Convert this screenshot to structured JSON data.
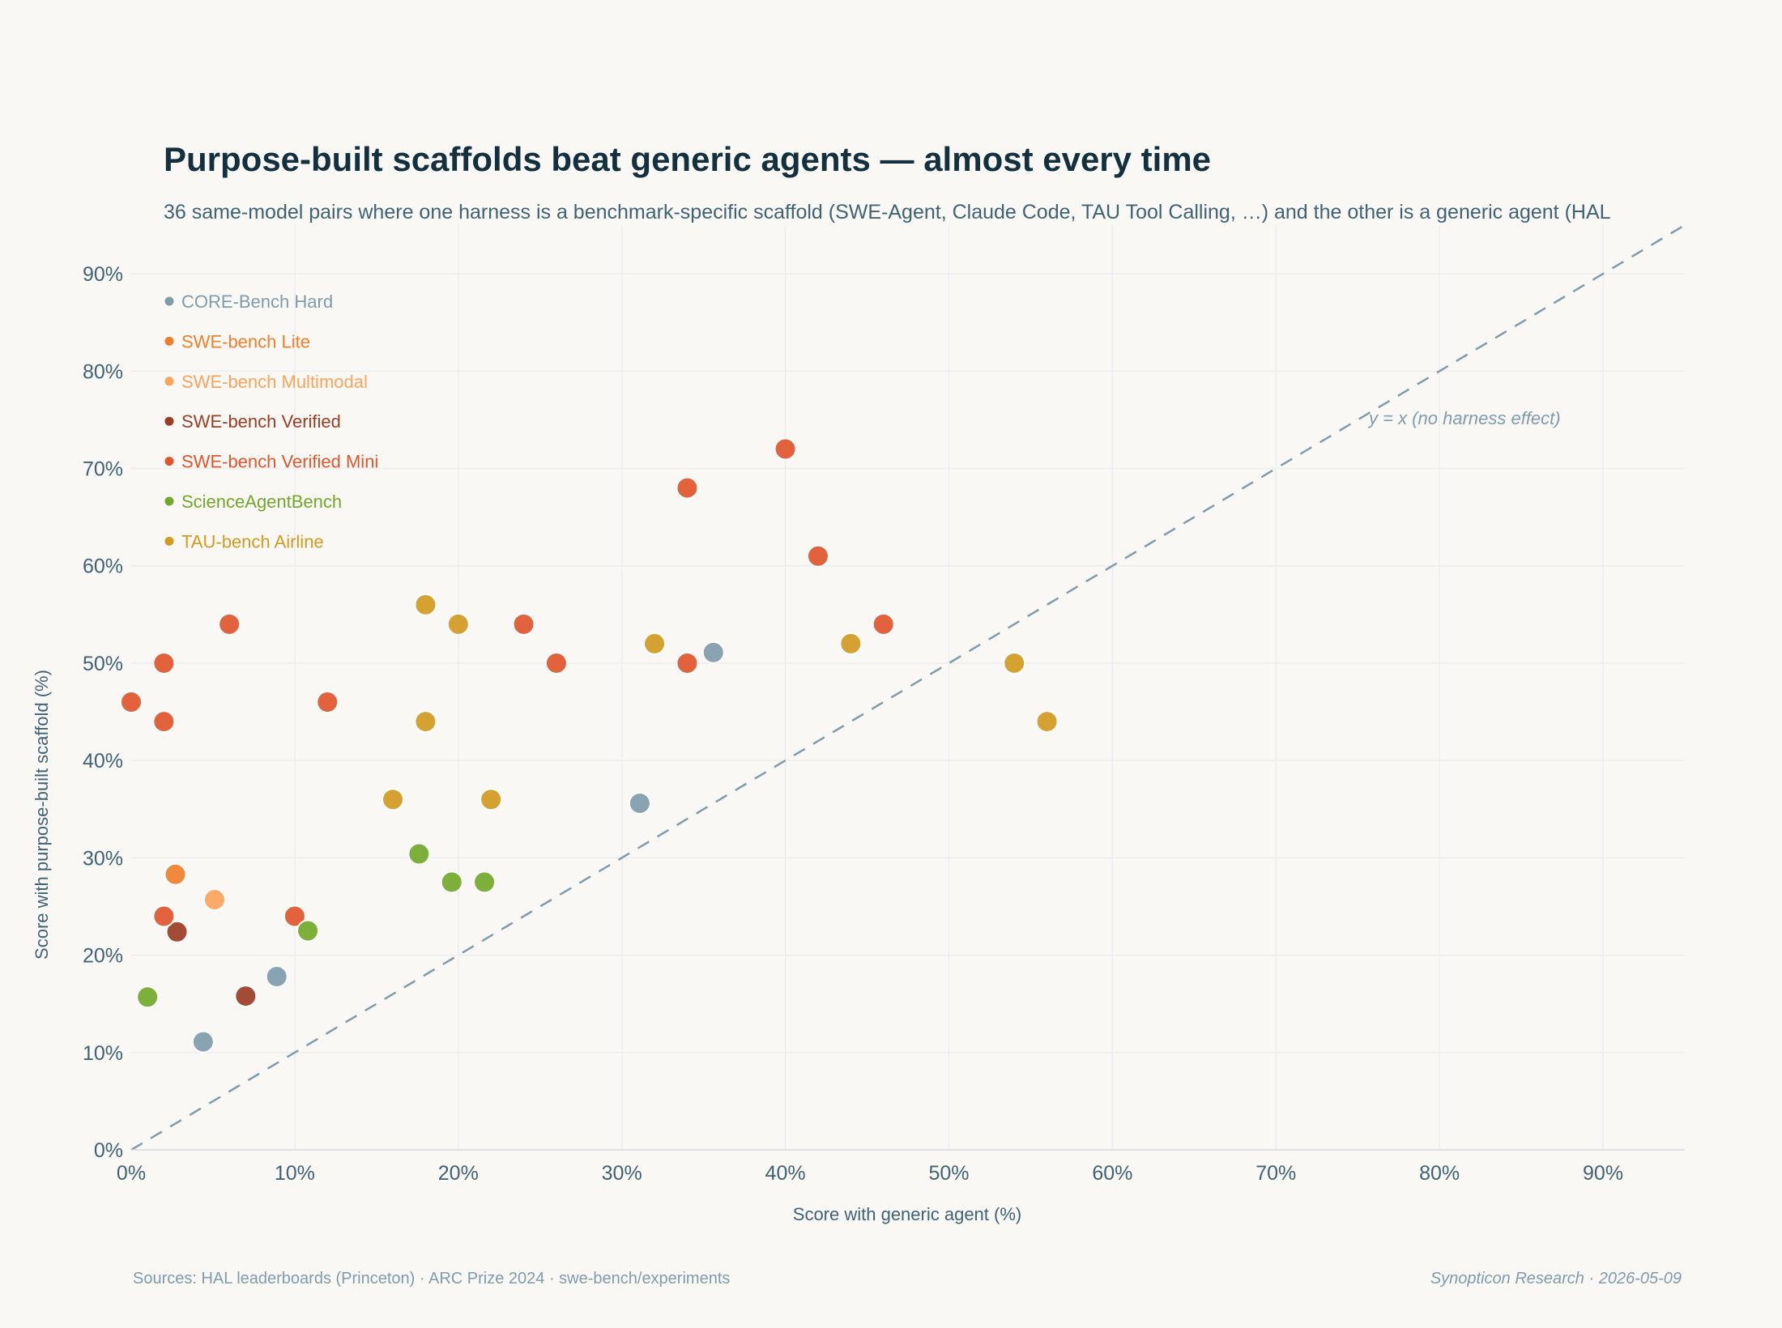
{
  "title": "Purpose-built scaffolds beat generic agents — almost every time",
  "subtitle": "36 same-model pairs where one harness is a benchmark-specific scaffold (SWE-Agent, Claude Code, TAU Tool Calling, …) and the other is a generic agent (HAL",
  "sources": "Sources: HAL leaderboards (Princeton) · ARC Prize 2024 · swe-bench/experiments",
  "credit": "Synopticon Research · 2026-05-09",
  "diagonal_label": "y = x (no harness effect)",
  "chart_data": {
    "type": "scatter",
    "title": "Purpose-built scaffolds beat generic agents — almost every time",
    "xlabel": "Score with generic agent (%)",
    "ylabel": "Score with purpose-built scaffold (%)",
    "xlim": [
      0,
      95
    ],
    "ylim": [
      0,
      95
    ],
    "xticks": [
      "0%",
      "10%",
      "20%",
      "30%",
      "40%",
      "50%",
      "60%",
      "70%",
      "80%",
      "90%"
    ],
    "yticks": [
      "0%",
      "10%",
      "20%",
      "30%",
      "40%",
      "50%",
      "60%",
      "70%",
      "80%",
      "90%"
    ],
    "tick_values": [
      0,
      10,
      20,
      30,
      40,
      50,
      60,
      70,
      80,
      90
    ],
    "grid": true,
    "legend_position": "top-left",
    "reference_line": "y = x",
    "series": [
      {
        "name": "CORE-Bench Hard",
        "color": "#7f9bac",
        "points": [
          [
            4.4,
            11.1
          ],
          [
            8.9,
            17.8
          ],
          [
            31.1,
            35.6
          ],
          [
            35.6,
            51.1
          ]
        ]
      },
      {
        "name": "SWE-bench Lite",
        "color": "#f07f2c",
        "points": [
          [
            2.7,
            28.3
          ]
        ]
      },
      {
        "name": "SWE-bench Multimodal",
        "color": "#fba35a",
        "points": [
          [
            5.1,
            25.7
          ]
        ]
      },
      {
        "name": "SWE-bench Verified",
        "color": "#9a3d25",
        "points": [
          [
            2.8,
            22.4
          ],
          [
            7.0,
            15.8
          ]
        ]
      },
      {
        "name": "SWE-bench Verified Mini",
        "color": "#e0552c",
        "points": [
          [
            0,
            46
          ],
          [
            2,
            50
          ],
          [
            2,
            44
          ],
          [
            2,
            24
          ],
          [
            6,
            54
          ],
          [
            10,
            24
          ],
          [
            12,
            46
          ],
          [
            24,
            54
          ],
          [
            26,
            50
          ],
          [
            34,
            68
          ],
          [
            34,
            50
          ],
          [
            40,
            72
          ],
          [
            42,
            61
          ],
          [
            46,
            54
          ]
        ]
      },
      {
        "name": "ScienceAgentBench",
        "color": "#72a82a",
        "points": [
          [
            1,
            15.7
          ],
          [
            10.8,
            22.5
          ],
          [
            17.6,
            30.4
          ],
          [
            19.6,
            27.5
          ],
          [
            21.6,
            27.5
          ]
        ]
      },
      {
        "name": "TAU-bench Airline",
        "color": "#d19a21",
        "points": [
          [
            16,
            36
          ],
          [
            18,
            56
          ],
          [
            18,
            44
          ],
          [
            20,
            54
          ],
          [
            22,
            36
          ],
          [
            32,
            52
          ],
          [
            44,
            52
          ],
          [
            54,
            50
          ],
          [
            56,
            44
          ]
        ]
      }
    ]
  }
}
